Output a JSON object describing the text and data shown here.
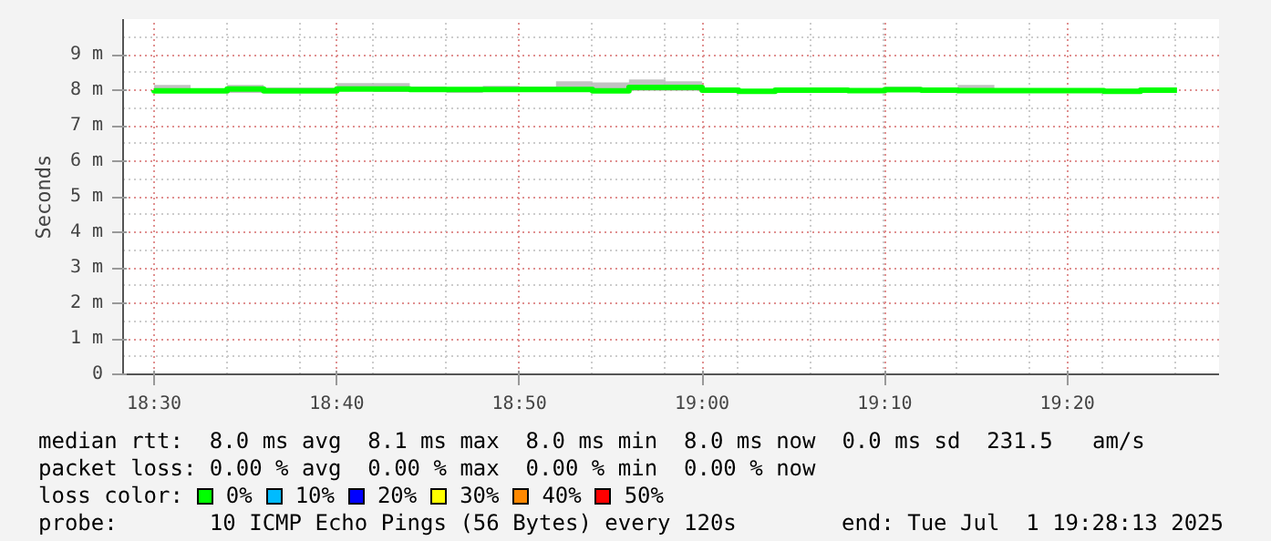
{
  "chart_data": {
    "type": "step",
    "ylabel": "Seconds",
    "x": [
      18.5,
      18.5333,
      18.5667,
      18.6,
      18.6333,
      18.6667,
      18.7,
      18.7333,
      18.7667,
      18.8,
      18.8333,
      18.8667,
      18.9,
      18.9333,
      18.9667,
      19.0,
      19.0333,
      19.0667,
      19.1,
      19.1333,
      19.1667,
      19.2,
      19.2333,
      19.2667,
      19.3,
      19.3333,
      19.3667,
      19.4,
      19.4333
    ],
    "series": [
      {
        "color": "#00ff00",
        "values": [
          8.0,
          7.98,
          7.98,
          8.03,
          7.98,
          7.98,
          8.03,
          8.03,
          8.02,
          8.02,
          8.02,
          8.02,
          8.02,
          7.98,
          8.08,
          8.08,
          8.0,
          7.97,
          8.0,
          8.0,
          7.99,
          8.01,
          8.0,
          7.99,
          7.99,
          7.99,
          7.99,
          7.97,
          8.0
        ],
        "lower": [
          7.95,
          7.95,
          7.95,
          7.92,
          7.95,
          7.95,
          7.98,
          7.95,
          7.95,
          7.92,
          7.95,
          7.95,
          7.98,
          7.95,
          7.98,
          7.98,
          7.98,
          7.95,
          7.98,
          7.98,
          7.95,
          7.95,
          7.92,
          7.95,
          7.95,
          7.93,
          7.95,
          7.95,
          7.97
        ],
        "upper": [
          8.15,
          8.15,
          8.05,
          8.15,
          8.08,
          8.08,
          8.2,
          8.2,
          8.1,
          8.08,
          8.12,
          8.1,
          8.25,
          8.22,
          8.3,
          8.25,
          8.05,
          8.02,
          8.05,
          8.05,
          8.03,
          8.1,
          8.05,
          8.15,
          8.05,
          8.03,
          8.03,
          8.03,
          8.03
        ]
      }
    ],
    "xlim": [
      18.4717,
      19.4717
    ],
    "xticks": [
      {
        "value": 18.5,
        "label": "18:30"
      },
      {
        "value": 18.6667,
        "label": "18:40"
      },
      {
        "value": 18.8333,
        "label": "18:50"
      },
      {
        "value": 19.0,
        "label": "19:00"
      },
      {
        "value": 19.1667,
        "label": "19:10"
      },
      {
        "value": 19.3333,
        "label": "19:20"
      }
    ],
    "ylim": [
      0,
      10
    ],
    "yticks": [
      0,
      {
        "value": 1,
        "label": "1 m"
      },
      {
        "value": 2,
        "label": "2 m"
      },
      {
        "value": 3,
        "label": "3 m"
      },
      {
        "value": 4,
        "label": "4 m"
      },
      {
        "value": 5,
        "label": "5 m"
      },
      {
        "value": 6,
        "label": "6 m"
      },
      {
        "value": 7,
        "label": "7 m"
      },
      {
        "value": 8,
        "label": "8 m"
      },
      {
        "value": 9,
        "label": "9 m"
      }
    ],
    "grid": true,
    "annotations": [
      "median rtt:  8.0 ms avg  8.1 ms max  8.0 ms min  8.0 ms now  0.0 ms sd  231.5   am/s",
      "packet loss: 0.00 % avg  0.00 % max  0.00 % min  0.00 % now",
      "loss color:  0%  10%  20%  30%  40%  50%",
      "probe:       10 ICMP Echo Pings (56 Bytes) every 120s",
      "end: Tue Jul  1 19:28:13 2025"
    ]
  }
}
